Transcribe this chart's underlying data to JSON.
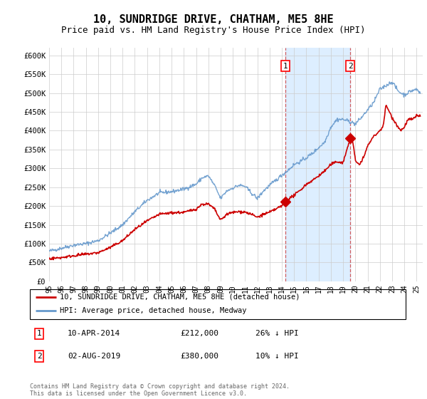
{
  "title": "10, SUNDRIDGE DRIVE, CHATHAM, ME5 8HE",
  "subtitle": "Price paid vs. HM Land Registry's House Price Index (HPI)",
  "title_fontsize": 11,
  "subtitle_fontsize": 9,
  "ylim": [
    0,
    620000
  ],
  "yticks": [
    0,
    50000,
    100000,
    150000,
    200000,
    250000,
    300000,
    350000,
    400000,
    450000,
    500000,
    550000,
    600000
  ],
  "ytick_labels": [
    "£0",
    "£50K",
    "£100K",
    "£150K",
    "£200K",
    "£250K",
    "£300K",
    "£350K",
    "£400K",
    "£450K",
    "£500K",
    "£550K",
    "£600K"
  ],
  "xlim_start": 1995.0,
  "xlim_end": 2025.5,
  "transaction1_date": 2014.27,
  "transaction1_price": 212000,
  "transaction1_label": "1",
  "transaction1_display": "10-APR-2014",
  "transaction1_amount": "£212,000",
  "transaction1_pct": "26% ↓ HPI",
  "transaction2_date": 2019.58,
  "transaction2_price": 380000,
  "transaction2_label": "2",
  "transaction2_display": "02-AUG-2019",
  "transaction2_amount": "£380,000",
  "transaction2_pct": "10% ↓ HPI",
  "red_line_color": "#cc0000",
  "blue_line_color": "#6699cc",
  "shade_color": "#ddeeff",
  "grid_color": "#cccccc",
  "footnote": "Contains HM Land Registry data © Crown copyright and database right 2024.\nThis data is licensed under the Open Government Licence v3.0.",
  "legend_line1": "10, SUNDRIDGE DRIVE, CHATHAM, ME5 8HE (detached house)",
  "legend_line2": "HPI: Average price, detached house, Medway"
}
